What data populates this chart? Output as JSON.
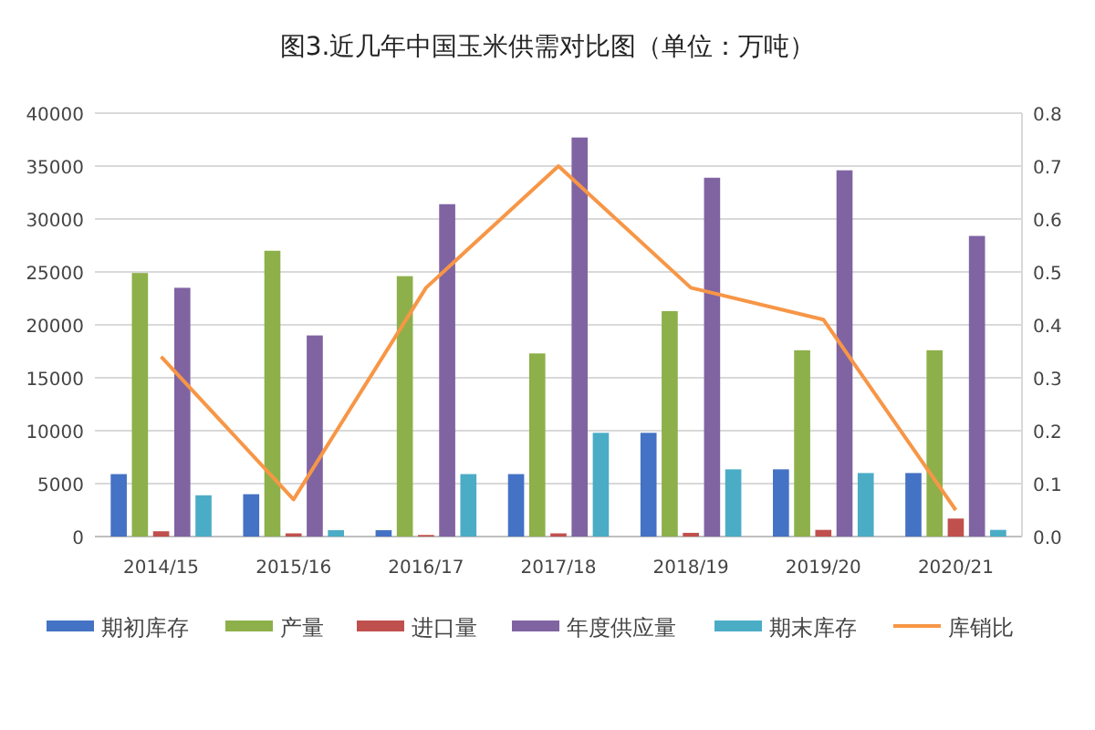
{
  "chart_data": {
    "type": "bar",
    "title": "图3.近几年中国玉米供需对比图（单位：万吨）",
    "categories": [
      "2014/15",
      "2015/16",
      "2016/17",
      "2017/18",
      "2018/19",
      "2019/20",
      "2020/21"
    ],
    "series": [
      {
        "name": "期初库存",
        "color": "#4472c4",
        "values": [
          5900,
          4000,
          600,
          5900,
          9800,
          6350,
          6000
        ]
      },
      {
        "name": "产量",
        "color": "#8db04a",
        "values": [
          24900,
          27000,
          24600,
          17300,
          21300,
          17600,
          17600
        ]
      },
      {
        "name": "进口量",
        "color": "#c0504d",
        "values": [
          500,
          300,
          150,
          300,
          350,
          630,
          1700
        ]
      },
      {
        "name": "年度供应量",
        "color": "#8064a2",
        "values": [
          23500,
          19000,
          31400,
          37700,
          33900,
          34600,
          28400
        ]
      },
      {
        "name": "期末库存",
        "color": "#4bacc6",
        "values": [
          3900,
          600,
          5900,
          9800,
          6350,
          6000,
          630
        ]
      },
      {
        "name": "库销比",
        "type": "line",
        "axis": "y2",
        "color": "#f79646",
        "values": [
          0.34,
          0.07,
          0.47,
          0.7,
          0.47,
          0.41,
          0.05
        ]
      }
    ],
    "ylim": [
      0,
      40000
    ],
    "yticks": [
      0,
      5000,
      10000,
      15000,
      20000,
      25000,
      30000,
      35000,
      40000
    ],
    "y2lim": [
      0,
      0.8
    ],
    "y2ticks": [
      {
        "value": 0,
        "label": "0.0"
      },
      0.1,
      0.2,
      0.3,
      0.4,
      0.5,
      0.6,
      0.7,
      0.8
    ],
    "grid": "y",
    "legend": "bottom"
  }
}
